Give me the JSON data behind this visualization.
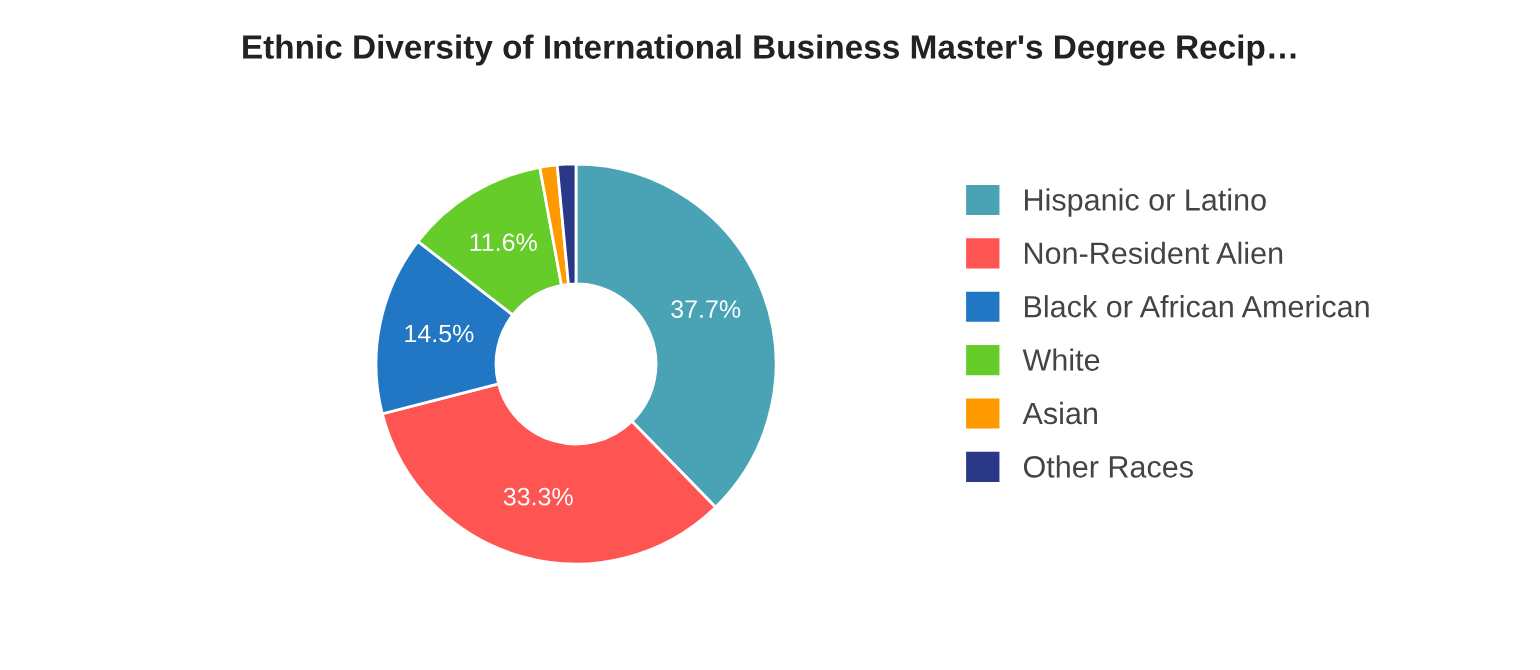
{
  "chart_data": {
    "type": "donut",
    "title": "Ethnic Diversity of International Business Master's Degree Recip…",
    "categories": [
      "Hispanic or Latino",
      "Non-Resident Alien",
      "Black or African American",
      "White",
      "Asian",
      "Other Races"
    ],
    "values": [
      37.7,
      33.3,
      14.5,
      11.6,
      1.4,
      1.5
    ],
    "colors": [
      "#4aa3b5",
      "#fe5553",
      "#2277c4",
      "#66cc2a",
      "#fe9a00",
      "#2a3888"
    ],
    "value_labels": [
      "37.7%",
      "33.3%",
      "14.5%",
      "11.6%",
      null,
      null
    ],
    "legend": "right"
  }
}
